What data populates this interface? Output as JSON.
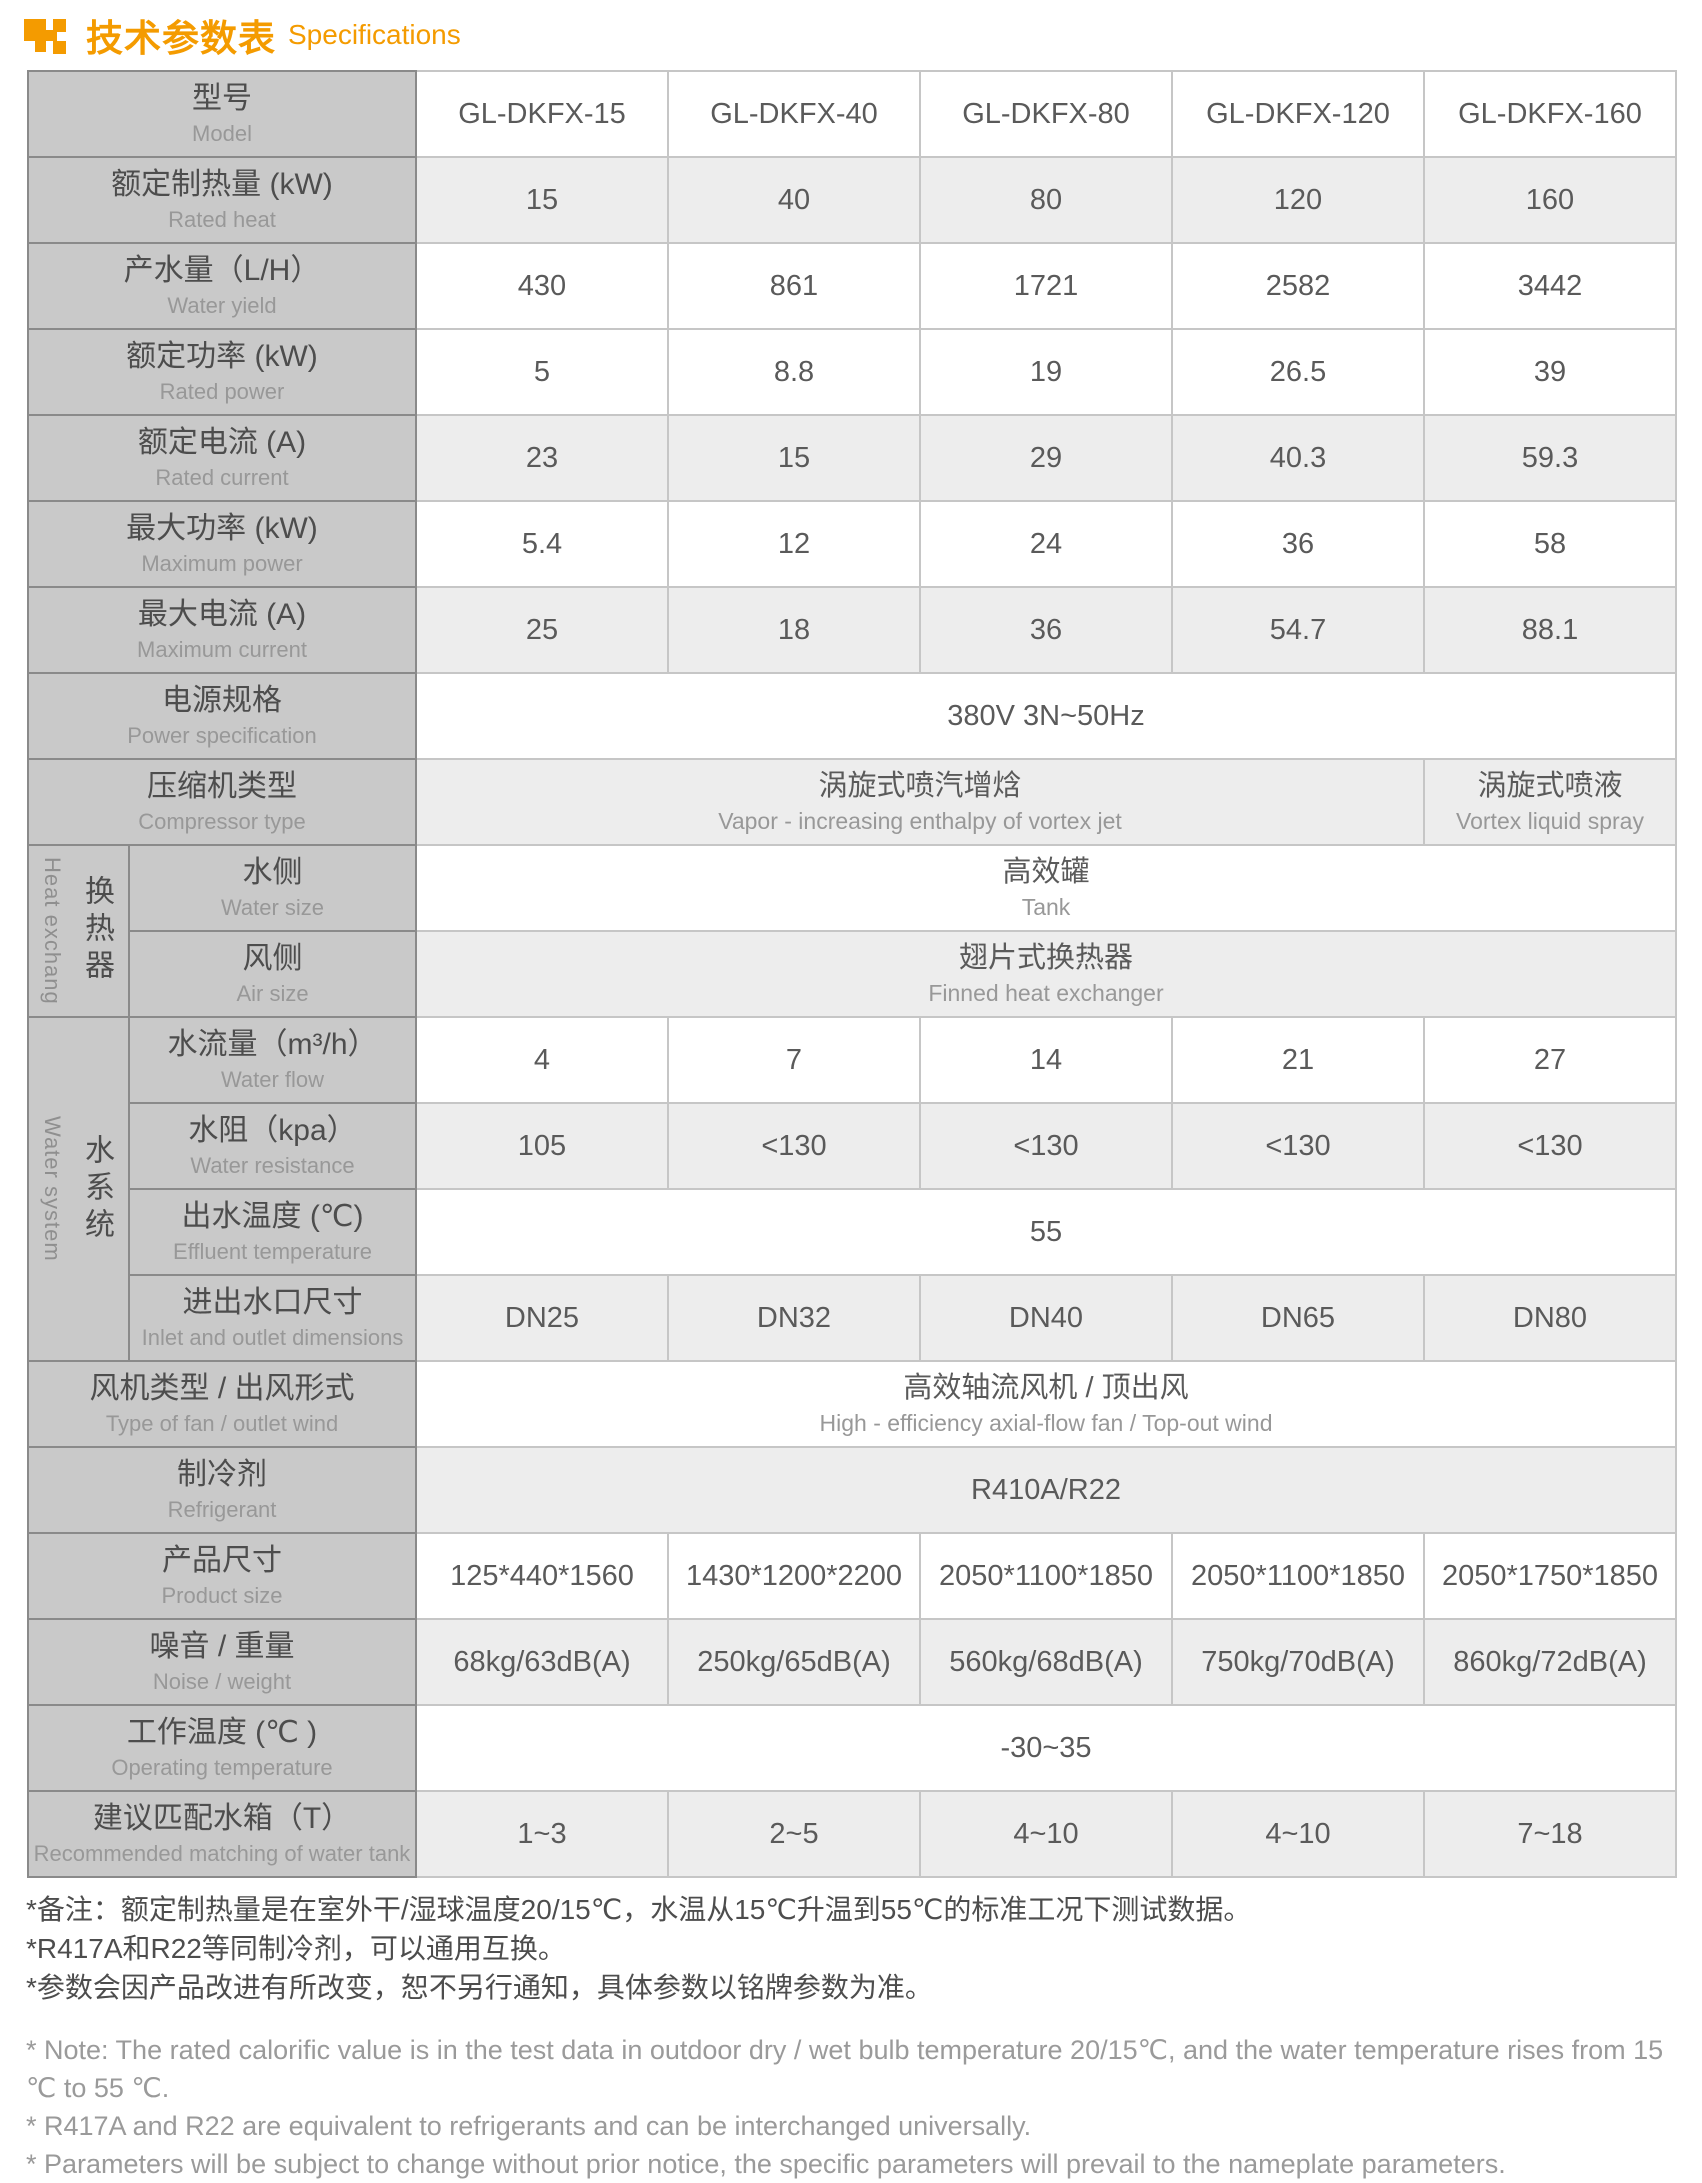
{
  "title": {
    "zh": "技术参数表",
    "en": "Specifications"
  },
  "colors": {
    "accent": "#F49B00",
    "label_bg": "#c9c9c9",
    "shade_bg": "#ededed",
    "border_dark": "#8a8a8a",
    "border_light": "#c6c6c6"
  },
  "table": {
    "rows": [
      {
        "id": "model",
        "type": "cells",
        "zh": "型号",
        "en": "Model",
        "shade": false,
        "values": [
          "GL-DKFX-15",
          "GL-DKFX-40",
          "GL-DKFX-80",
          "GL-DKFX-120",
          "GL-DKFX-160"
        ]
      },
      {
        "id": "rated-heat",
        "type": "cells",
        "zh": "额定制热量 (kW)",
        "en": "Rated heat",
        "shade": true,
        "values": [
          "15",
          "40",
          "80",
          "120",
          "160"
        ]
      },
      {
        "id": "water-yield",
        "type": "cells",
        "zh": "产水量（L/H）",
        "en": "Water yield",
        "shade": false,
        "values": [
          "430",
          "861",
          "1721",
          "2582",
          "3442"
        ]
      },
      {
        "id": "rated-power",
        "type": "cells",
        "zh": "额定功率 (kW)",
        "en": "Rated power",
        "shade": false,
        "values": [
          "5",
          "8.8",
          "19",
          "26.5",
          "39"
        ]
      },
      {
        "id": "rated-current",
        "type": "cells",
        "zh": "额定电流 (A)",
        "en": "Rated current",
        "shade": true,
        "values": [
          "23",
          "15",
          "29",
          "40.3",
          "59.3"
        ]
      },
      {
        "id": "max-power",
        "type": "cells",
        "zh": "最大功率 (kW)",
        "en": "Maximum power",
        "shade": false,
        "values": [
          "5.4",
          "12",
          "24",
          "36",
          "58"
        ]
      },
      {
        "id": "max-current",
        "type": "cells",
        "zh": "最大电流 (A)",
        "en": "Maximum current",
        "shade": true,
        "values": [
          "25",
          "18",
          "36",
          "54.7",
          "88.1"
        ]
      },
      {
        "id": "power-spec",
        "type": "span",
        "zh": "电源规格",
        "en": "Power specification",
        "shade": false,
        "span": {
          "zh": "380V 3N~50Hz",
          "en": ""
        }
      },
      {
        "id": "compressor",
        "type": "split",
        "zh": "压缩机类型",
        "en": "Compressor type",
        "shade": true,
        "cells": [
          {
            "span": 4,
            "zh": "涡旋式喷汽增焓",
            "en": "Vapor - increasing enthalpy of vortex jet"
          },
          {
            "span": 1,
            "zh": "涡旋式喷液",
            "en": "Vortex liquid spray"
          }
        ]
      },
      {
        "id": "water-side",
        "type": "span",
        "zh": "水侧",
        "en": "Water size",
        "shade": false,
        "in_group": true,
        "group": {
          "zh": "换热器",
          "en": "Heat exchang",
          "rows": 2
        },
        "span": {
          "zh": "高效罐",
          "en": "Tank"
        }
      },
      {
        "id": "air-side",
        "type": "span",
        "zh": "风侧",
        "en": "Air size",
        "shade": true,
        "in_group": true,
        "span": {
          "zh": "翅片式换热器",
          "en": "Finned heat exchanger"
        }
      },
      {
        "id": "water-flow",
        "type": "cells",
        "zh": "水流量（m³/h）",
        "en": "Water flow",
        "shade": false,
        "in_group": true,
        "group": {
          "zh": "水系统",
          "en": "Water system",
          "rows": 4
        },
        "values": [
          "4",
          "7",
          "14",
          "21",
          "27"
        ]
      },
      {
        "id": "water-resistance",
        "type": "cells",
        "zh": "水阻（kpa）",
        "en": "Water resistance",
        "shade": true,
        "in_group": true,
        "values": [
          "105",
          "<130",
          "<130",
          "<130",
          "<130"
        ]
      },
      {
        "id": "effluent-temp",
        "type": "span",
        "zh": "出水温度 (℃)",
        "en": "Effluent temperature",
        "shade": false,
        "in_group": true,
        "span": {
          "zh": "55",
          "en": ""
        }
      },
      {
        "id": "inlet-outlet",
        "type": "cells",
        "zh": "进出水口尺寸",
        "en": "Inlet and outlet dimensions",
        "shade": true,
        "in_group": true,
        "values": [
          "DN25",
          "DN32",
          "DN40",
          "DN65",
          "DN80"
        ]
      },
      {
        "id": "fan-type",
        "type": "span",
        "zh": "风机类型 / 出风形式",
        "en": "Type of fan / outlet wind",
        "shade": false,
        "span": {
          "zh": "高效轴流风机 / 顶出风",
          "en": "High - efficiency axial-flow fan / Top-out wind"
        }
      },
      {
        "id": "refrigerant",
        "type": "span",
        "zh": "制冷剂",
        "en": "Refrigerant",
        "shade": true,
        "span": {
          "zh": "R410A/R22",
          "en": ""
        }
      },
      {
        "id": "product-size",
        "type": "cells",
        "zh": "产品尺寸",
        "en": "Product size",
        "shade": false,
        "values": [
          "125*440*1560",
          "1430*1200*2200",
          "2050*1100*1850",
          "2050*1100*1850",
          "2050*1750*1850"
        ]
      },
      {
        "id": "noise-weight",
        "type": "cells",
        "zh": "噪音 / 重量",
        "en": "Noise / weight",
        "shade": true,
        "values": [
          "68kg/63dB(A)",
          "250kg/65dB(A)",
          "560kg/68dB(A)",
          "750kg/70dB(A)",
          "860kg/72dB(A)"
        ]
      },
      {
        "id": "operating-temp",
        "type": "span",
        "zh": "工作温度 (℃ )",
        "en": "Operating temperature",
        "shade": false,
        "span": {
          "zh": "-30~35",
          "en": ""
        }
      },
      {
        "id": "water-tank",
        "type": "cells",
        "zh": "建议匹配水箱（T）",
        "en": "Recommended matching of water tank",
        "shade": true,
        "values": [
          "1~3",
          "2~5",
          "4~10",
          "4~10",
          "7~18"
        ]
      }
    ]
  },
  "footnotes": {
    "zh": [
      "*备注：额定制热量是在室外干/湿球温度20/15℃，水温从15℃升温到55℃的标准工况下测试数据。",
      "*R417A和R22等同制冷剂，可以通用互换。",
      "*参数会因产品改进有所改变，恕不另行通知，具体参数以铭牌参数为准。"
    ],
    "en": [
      "* Note: The rated calorific value is in the test data in outdoor dry / wet bulb temperature 20/15℃, and the water temperature rises from 15 ℃ to 55 ℃.",
      "* R417A and R22 are equivalent to refrigerants and can be interchanged universally.",
      "* Parameters will be subject to change without prior notice, the specific parameters will prevail to the nameplate parameters."
    ]
  }
}
